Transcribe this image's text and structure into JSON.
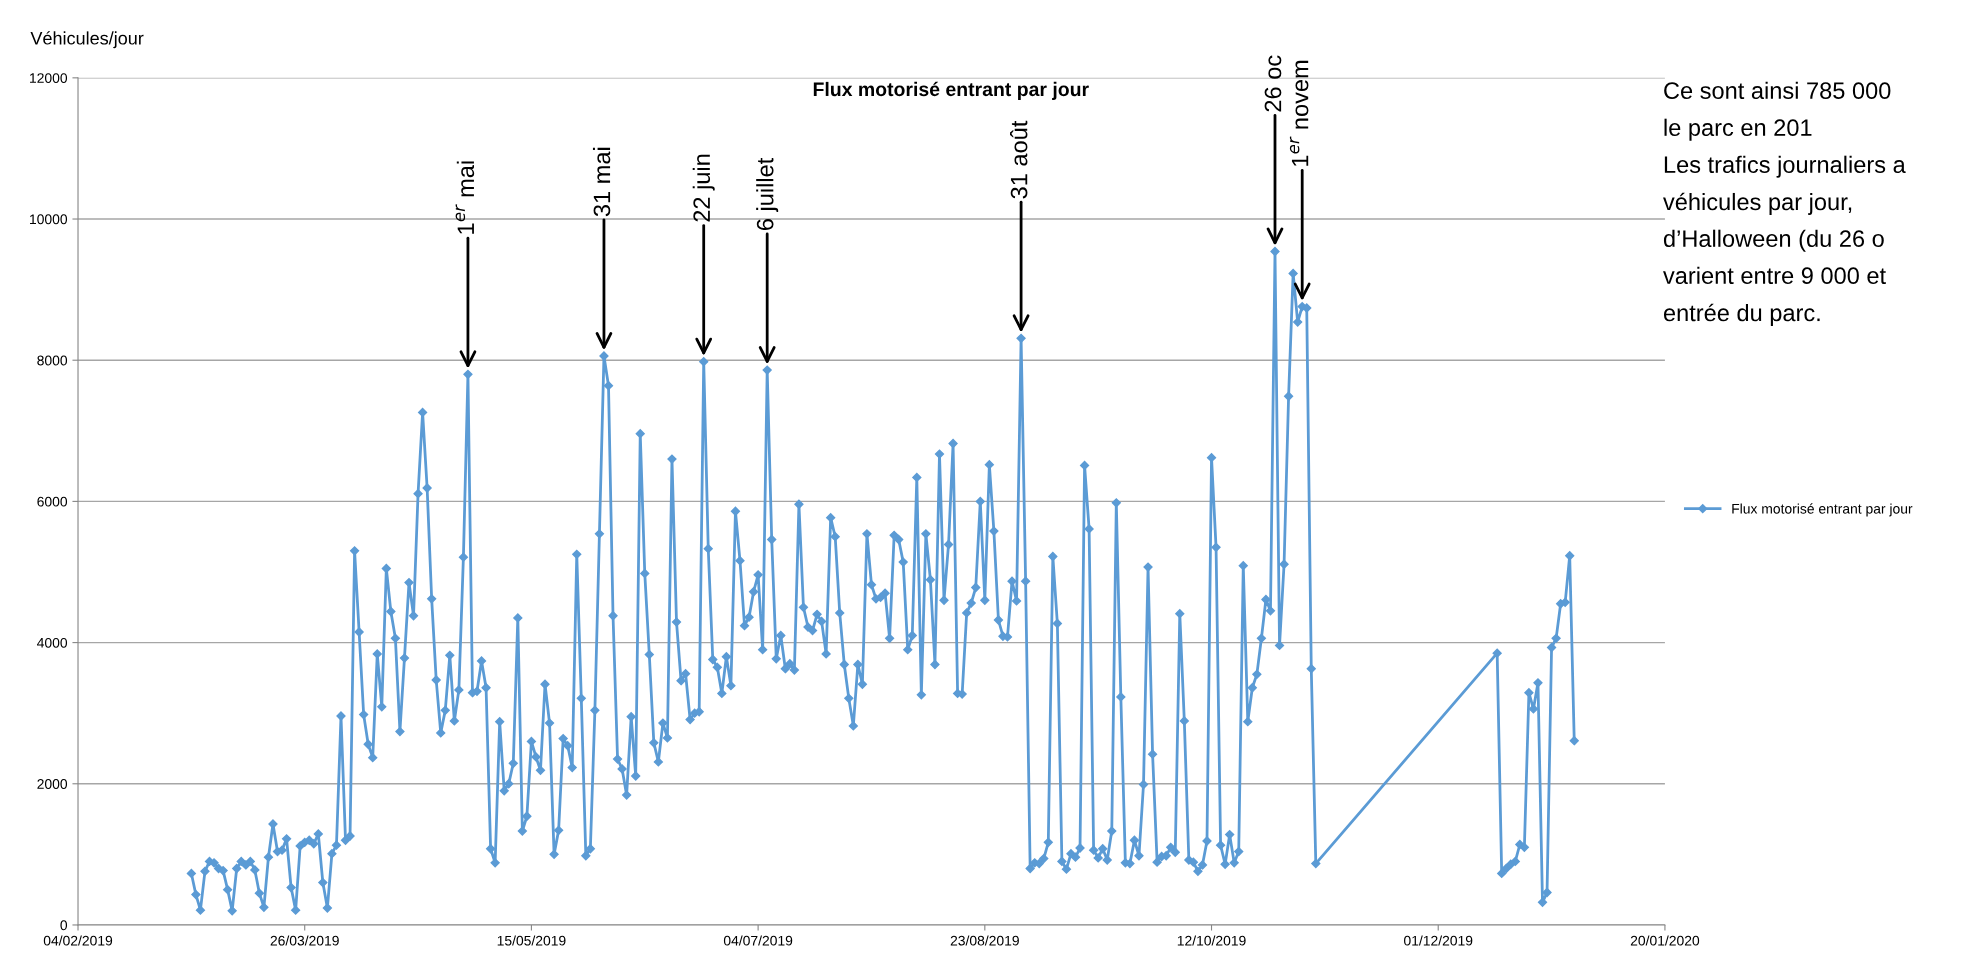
{
  "chart_data": {
    "type": "line",
    "title": "Flux motorisé entrant par jour",
    "ylabel": "Véhicules/jour",
    "xlim": [
      "2019-02-04",
      "2020-01-20"
    ],
    "xticks": [
      {
        "value": "2019-02-04",
        "label": "04/02/2019"
      },
      {
        "value": "2019-03-26",
        "label": "26/03/2019"
      },
      {
        "value": "2019-05-15",
        "label": "15/05/2019"
      },
      {
        "value": "2019-07-04",
        "label": "04/07/2019"
      },
      {
        "value": "2019-08-23",
        "label": "23/08/2019"
      },
      {
        "value": "2019-10-12",
        "label": "12/10/2019"
      },
      {
        "value": "2019-12-01",
        "label": "01/12/2019"
      },
      {
        "value": "2020-01-20",
        "label": "20/01/2020"
      }
    ],
    "ylim": [
      0,
      12000
    ],
    "yticks": [
      0,
      2000,
      4000,
      6000,
      8000,
      10000,
      12000
    ],
    "grid": "y",
    "legend": "right",
    "marker": "diamond",
    "line_style": "solid",
    "series": [
      {
        "name": "Flux motorisé entrant par jour",
        "color": "#5b9bd5",
        "x": [
          "2019-03-01",
          "2019-03-02",
          "2019-03-03",
          "2019-03-04",
          "2019-03-05",
          "2019-03-06",
          "2019-03-07",
          "2019-03-08",
          "2019-03-09",
          "2019-03-10",
          "2019-03-11",
          "2019-03-12",
          "2019-03-13",
          "2019-03-14",
          "2019-03-15",
          "2019-03-16",
          "2019-03-17",
          "2019-03-18",
          "2019-03-19",
          "2019-03-20",
          "2019-03-21",
          "2019-03-22",
          "2019-03-23",
          "2019-03-24",
          "2019-03-25",
          "2019-03-26",
          "2019-03-27",
          "2019-03-28",
          "2019-03-29",
          "2019-03-30",
          "2019-03-31",
          "2019-04-01",
          "2019-04-02",
          "2019-04-03",
          "2019-04-04",
          "2019-04-05",
          "2019-04-06",
          "2019-04-07",
          "2019-04-08",
          "2019-04-09",
          "2019-04-10",
          "2019-04-11",
          "2019-04-12",
          "2019-04-13",
          "2019-04-14",
          "2019-04-15",
          "2019-04-16",
          "2019-04-17",
          "2019-04-18",
          "2019-04-19",
          "2019-04-20",
          "2019-04-21",
          "2019-04-22",
          "2019-04-23",
          "2019-04-24",
          "2019-04-25",
          "2019-04-26",
          "2019-04-27",
          "2019-04-28",
          "2019-04-29",
          "2019-04-30",
          "2019-05-01",
          "2019-05-02",
          "2019-05-03",
          "2019-05-04",
          "2019-05-05",
          "2019-05-06",
          "2019-05-07",
          "2019-05-08",
          "2019-05-09",
          "2019-05-10",
          "2019-05-11",
          "2019-05-12",
          "2019-05-13",
          "2019-05-14",
          "2019-05-15",
          "2019-05-16",
          "2019-05-17",
          "2019-05-18",
          "2019-05-19",
          "2019-05-20",
          "2019-05-21",
          "2019-05-22",
          "2019-05-23",
          "2019-05-24",
          "2019-05-25",
          "2019-05-26",
          "2019-05-27",
          "2019-05-28",
          "2019-05-29",
          "2019-05-30",
          "2019-05-31",
          "2019-06-01",
          "2019-06-02",
          "2019-06-03",
          "2019-06-04",
          "2019-06-05",
          "2019-06-06",
          "2019-06-07",
          "2019-06-08",
          "2019-06-09",
          "2019-06-10",
          "2019-06-11",
          "2019-06-12",
          "2019-06-13",
          "2019-06-14",
          "2019-06-15",
          "2019-06-16",
          "2019-06-17",
          "2019-06-18",
          "2019-06-19",
          "2019-06-20",
          "2019-06-21",
          "2019-06-22",
          "2019-06-23",
          "2019-06-24",
          "2019-06-25",
          "2019-06-26",
          "2019-06-27",
          "2019-06-28",
          "2019-06-29",
          "2019-06-30",
          "2019-07-01",
          "2019-07-02",
          "2019-07-03",
          "2019-07-04",
          "2019-07-05",
          "2019-07-06",
          "2019-07-07",
          "2019-07-08",
          "2019-07-09",
          "2019-07-10",
          "2019-07-11",
          "2019-07-12",
          "2019-07-13",
          "2019-07-14",
          "2019-07-15",
          "2019-07-16",
          "2019-07-17",
          "2019-07-18",
          "2019-07-19",
          "2019-07-20",
          "2019-07-21",
          "2019-07-22",
          "2019-07-23",
          "2019-07-24",
          "2019-07-25",
          "2019-07-26",
          "2019-07-27",
          "2019-07-28",
          "2019-07-29",
          "2019-07-30",
          "2019-07-31",
          "2019-08-01",
          "2019-08-02",
          "2019-08-03",
          "2019-08-04",
          "2019-08-05",
          "2019-08-06",
          "2019-08-07",
          "2019-08-08",
          "2019-08-09",
          "2019-08-10",
          "2019-08-11",
          "2019-08-12",
          "2019-08-13",
          "2019-08-14",
          "2019-08-15",
          "2019-08-16",
          "2019-08-17",
          "2019-08-18",
          "2019-08-19",
          "2019-08-20",
          "2019-08-21",
          "2019-08-22",
          "2019-08-23",
          "2019-08-24",
          "2019-08-25",
          "2019-08-26",
          "2019-08-27",
          "2019-08-28",
          "2019-08-29",
          "2019-08-30",
          "2019-08-31",
          "2019-09-01",
          "2019-09-02",
          "2019-09-03",
          "2019-09-04",
          "2019-09-05",
          "2019-09-06",
          "2019-09-07",
          "2019-09-08",
          "2019-09-09",
          "2019-09-10",
          "2019-09-11",
          "2019-09-12",
          "2019-09-13",
          "2019-09-14",
          "2019-09-15",
          "2019-09-16",
          "2019-09-17",
          "2019-09-18",
          "2019-09-19",
          "2019-09-20",
          "2019-09-21",
          "2019-09-22",
          "2019-09-23",
          "2019-09-24",
          "2019-09-25",
          "2019-09-26",
          "2019-09-27",
          "2019-09-28",
          "2019-09-29",
          "2019-09-30",
          "2019-10-01",
          "2019-10-02",
          "2019-10-03",
          "2019-10-04",
          "2019-10-05",
          "2019-10-06",
          "2019-10-07",
          "2019-10-08",
          "2019-10-09",
          "2019-10-10",
          "2019-10-11",
          "2019-10-12",
          "2019-10-13",
          "2019-10-14",
          "2019-10-15",
          "2019-10-16",
          "2019-10-17",
          "2019-10-18",
          "2019-10-19",
          "2019-10-20",
          "2019-10-21",
          "2019-10-22",
          "2019-10-23",
          "2019-10-24",
          "2019-10-25",
          "2019-10-26",
          "2019-10-27",
          "2019-10-28",
          "2019-10-29",
          "2019-10-30",
          "2019-10-31",
          "2019-11-01",
          "2019-11-02",
          "2019-11-03",
          "2019-11-04",
          "2019-12-14",
          "2019-12-15",
          "2019-12-16",
          "2019-12-17",
          "2019-12-18",
          "2019-12-19",
          "2019-12-20",
          "2019-12-21",
          "2019-12-22",
          "2019-12-23",
          "2019-12-24",
          "2019-12-25",
          "2019-12-26",
          "2019-12-27",
          "2019-12-28",
          "2019-12-29",
          "2019-12-30",
          "2019-12-31"
        ],
        "values": [
          730,
          430,
          210,
          760,
          900,
          880,
          800,
          770,
          500,
          200,
          800,
          900,
          850,
          900,
          780,
          450,
          250,
          960,
          1430,
          1040,
          1060,
          1220,
          530,
          210,
          1120,
          1170,
          1200,
          1150,
          1290,
          600,
          240,
          1010,
          1130,
          2960,
          1200,
          1260,
          5300,
          4150,
          2980,
          2560,
          2370,
          3840,
          3090,
          5050,
          4440,
          4060,
          2740,
          3780,
          4850,
          4380,
          6110,
          7260,
          6190,
          4620,
          3470,
          2720,
          3040,
          3820,
          2890,
          3330,
          5210,
          7800,
          3290,
          3310,
          3740,
          3360,
          1080,
          880,
          2880,
          1900,
          2000,
          2290,
          4350,
          1330,
          1540,
          2600,
          2380,
          2190,
          3410,
          2860,
          1000,
          1340,
          2640,
          2540,
          2230,
          5250,
          3210,
          980,
          1080,
          3040,
          5540,
          8060,
          7640,
          4380,
          2350,
          2210,
          1840,
          2950,
          2110,
          6960,
          4980,
          3830,
          2580,
          2310,
          2860,
          2650,
          6600,
          4290,
          3460,
          3560,
          2910,
          3000,
          3020,
          7980,
          5330,
          3760,
          3650,
          3280,
          3800,
          3390,
          5860,
          5160,
          4240,
          4360,
          4720,
          4960,
          3900,
          7860,
          5460,
          3770,
          4100,
          3630,
          3700,
          3610,
          5960,
          4500,
          4220,
          4170,
          4400,
          4300,
          3840,
          5770,
          5500,
          4420,
          3690,
          3210,
          2820,
          3690,
          3410,
          5540,
          4820,
          4620,
          4640,
          4700,
          4060,
          5520,
          5460,
          5140,
          3900,
          4100,
          6340,
          3260,
          5540,
          4890,
          3690,
          6670,
          4600,
          5390,
          6820,
          3280,
          3270,
          4420,
          4560,
          4780,
          6000,
          4600,
          6520,
          5580,
          4320,
          4090,
          4080,
          4870,
          4590,
          8310,
          4870,
          800,
          880,
          870,
          940,
          1170,
          5220,
          4270,
          900,
          790,
          1010,
          960,
          1090,
          6510,
          5610,
          1060,
          950,
          1080,
          920,
          1330,
          5980,
          3230,
          880,
          870,
          1200,
          980,
          1990,
          5070,
          2420,
          890,
          970,
          980,
          1100,
          1030,
          4410,
          2890,
          920,
          890,
          760,
          850,
          1190,
          6620,
          5350,
          1130,
          860,
          1280,
          880,
          1040,
          5090,
          2880,
          3360,
          3550,
          4060,
          4610,
          4450,
          9540,
          3960,
          5110,
          7490,
          9230,
          8540,
          8760,
          8740,
          3630,
          870,
          3850,
          730,
          800,
          860,
          900,
          1140,
          1100,
          3290,
          3060,
          3430,
          320,
          460,
          3930,
          4060,
          4550,
          4570,
          5230,
          2610
        ]
      }
    ],
    "annotations": [
      {
        "text": "1$^{er}$ mai",
        "x": "2019-05-01",
        "y": 7800
      },
      {
        "text": "31 mai",
        "x": "2019-05-31",
        "y": 8060
      },
      {
        "text": "22 juin",
        "x": "2019-06-22",
        "y": 7980
      },
      {
        "text": "6 juillet",
        "x": "2019-07-06",
        "y": 7860
      },
      {
        "text": "31 août",
        "x": "2019-08-31",
        "y": 8310
      },
      {
        "text": "26 oc",
        "x": "2019-10-26",
        "y": 9540
      },
      {
        "text": "1$^{er}$ novem",
        "x": "2019-11-01",
        "y": 8760
      },
      "Ce sont ainsi 785 000",
      "le parc en 201",
      "Les trafics journaliers a",
      "véhicules par jour,",
      "d’Halloween (du 26 o",
      "varient entre 9 000 et",
      "entrée du parc."
    ]
  }
}
